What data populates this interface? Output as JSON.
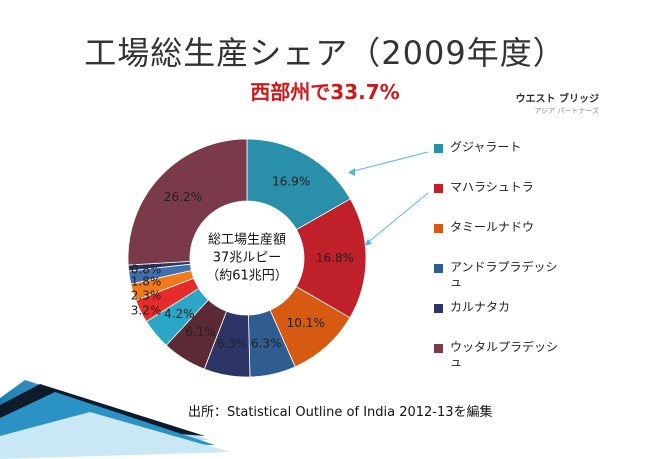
{
  "slide": {
    "title": "工場総生産シェア（2009年度）",
    "subtitle": "西部州で33.7%",
    "source": "出所：Statistical Outline of India 2012-13を編集",
    "logo_main": "ウエスト ブリッジ",
    "logo_sub": "アジア パートナーズ"
  },
  "chart_data": {
    "type": "pie",
    "subtype": "donut",
    "center_label": [
      "総工場生産額",
      "37兆ルピー",
      "（約61兆円）"
    ],
    "legend_position": "right",
    "slices": [
      {
        "name": "グジャラート",
        "value": 16.9,
        "label": "16.9%",
        "color": "#2a8fa8"
      },
      {
        "name": "マハラシュトラ",
        "value": 16.8,
        "label": "16.8%",
        "color": "#c0202a"
      },
      {
        "name": "",
        "value": 10.1,
        "label": "10.1%",
        "color": "#d65a12"
      },
      {
        "name": "",
        "value": 6.3,
        "label": "6.3%",
        "color": "#2f5d91"
      },
      {
        "name": "",
        "value": 6.3,
        "label": "6.3%",
        "color": "#2c3566"
      },
      {
        "name": "",
        "value": 6.1,
        "label": "6.1%",
        "color": "#5c2a34"
      },
      {
        "name": "",
        "value": 4.2,
        "label": "4.2%",
        "color": "#2ba6c7"
      },
      {
        "name": "",
        "value": 3.2,
        "label": "3.2%",
        "color": "#e62b2b"
      },
      {
        "name": "",
        "value": 2.3,
        "label": "2.3%",
        "color": "#f07a1a"
      },
      {
        "name": "",
        "value": 1.8,
        "label": "1.8%",
        "color": "#3f6fae"
      },
      {
        "name": "",
        "value": 0.8,
        "label": "0.8%",
        "color": "#2c3566"
      },
      {
        "name": "",
        "value": 26.2,
        "label": "26.2%",
        "color": "#7a3a4a"
      }
    ],
    "legend": [
      {
        "name": "グジャラート",
        "color": "#2a8fa8"
      },
      {
        "name": "マハラシュトラ",
        "color": "#c0202a"
      },
      {
        "name": "タミールナドウ",
        "color": "#d65a12"
      },
      {
        "name": "アンドラプラデッシュ",
        "color": "#2f5d91"
      },
      {
        "name": "カルナタカ",
        "color": "#2c3566"
      },
      {
        "name": "ウッタルプラデッシュ",
        "color": "#7a3a4a"
      }
    ]
  }
}
